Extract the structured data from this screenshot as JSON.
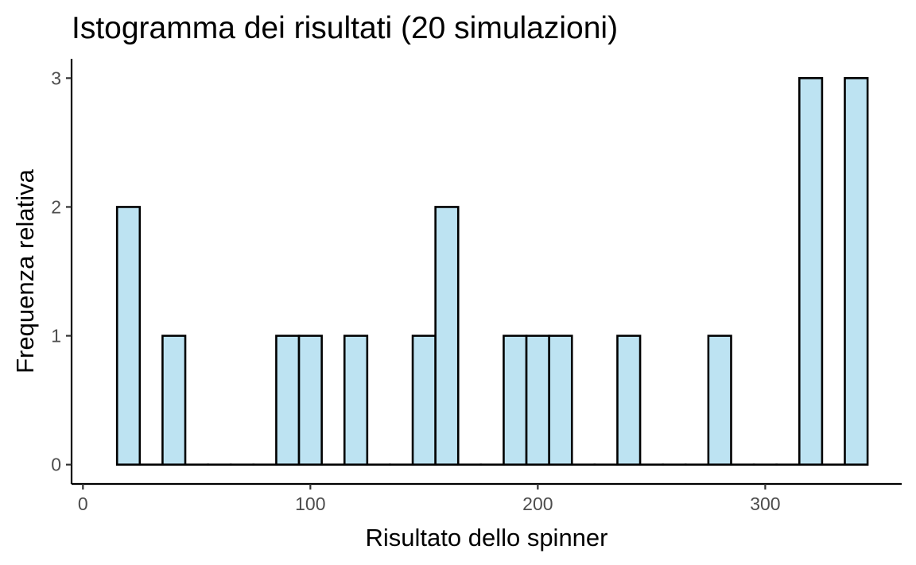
{
  "chart_data": {
    "type": "bar",
    "title": "Istogramma dei risultati (20 simulazioni)",
    "xlabel": "Risultato dello spinner",
    "ylabel": "Frequenza relativa",
    "xlim": [
      -5,
      360
    ],
    "ylim": [
      -0.15,
      3.15
    ],
    "x_ticks": [
      0,
      100,
      200,
      300
    ],
    "y_ticks": [
      0,
      1,
      2,
      3
    ],
    "bin_width": 10,
    "bin_centers": [
      20,
      30,
      40,
      50,
      60,
      70,
      80,
      90,
      100,
      110,
      120,
      130,
      140,
      150,
      160,
      170,
      180,
      190,
      200,
      210,
      220,
      230,
      240,
      250,
      260,
      270,
      280,
      290,
      300,
      310,
      320,
      330,
      340
    ],
    "values": [
      2,
      0,
      1,
      0,
      0,
      0,
      0,
      1,
      1,
      0,
      1,
      0,
      0,
      1,
      2,
      0,
      0,
      1,
      1,
      1,
      0,
      0,
      1,
      0,
      0,
      0,
      1,
      0,
      0,
      0,
      3,
      0,
      3
    ],
    "fill_color": "#BDE3F2",
    "edge_color": "#000000",
    "grid": false,
    "legend": "none"
  }
}
